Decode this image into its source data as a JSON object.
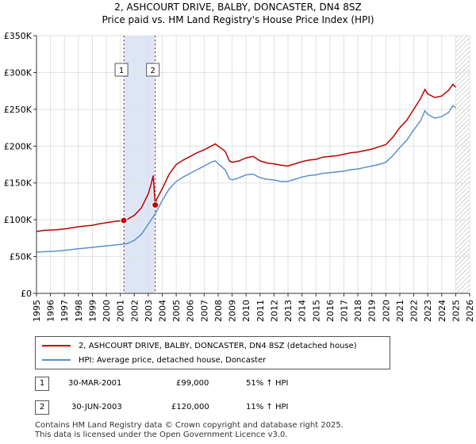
{
  "title": "2, ASHCOURT DRIVE, BALBY, DONCASTER, DN4 8SZ",
  "subtitle": "Price paid vs. HM Land Registry's House Price Index (HPI)",
  "colors": {
    "red": "#c00000",
    "blue": "#5b8fd0",
    "highlight": "#dce6f7",
    "grid": "#e0e0e0",
    "hatch": "#aaaaaa"
  },
  "chart_data": {
    "type": "line",
    "title": "2, ASHCOURT DRIVE, BALBY, DONCASTER, DN4 8SZ",
    "subtitle": "Price paid vs. HM Land Registry's House Price Index (HPI)",
    "xlim": [
      1995,
      2026
    ],
    "ylim": [
      0,
      350000
    ],
    "x_ticks": [
      "1995",
      "1996",
      "1997",
      "1998",
      "1999",
      "2000",
      "2001",
      "2002",
      "2003",
      "2004",
      "2005",
      "2006",
      "2007",
      "2008",
      "2009",
      "2010",
      "2011",
      "2012",
      "2013",
      "2014",
      "2015",
      "2016",
      "2017",
      "2018",
      "2019",
      "2020",
      "2021",
      "2022",
      "2023",
      "2024",
      "2025",
      "2026"
    ],
    "y_ticks": [
      {
        "value": 0,
        "label": "£0"
      },
      {
        "value": 50000,
        "label": "£50K"
      },
      {
        "value": 100000,
        "label": "£100K"
      },
      {
        "value": 150000,
        "label": "£150K"
      },
      {
        "value": 200000,
        "label": "£200K"
      },
      {
        "value": 250000,
        "label": "£250K"
      },
      {
        "value": 300000,
        "label": "£300K"
      },
      {
        "value": 350000,
        "label": "£350K"
      }
    ],
    "grid": true,
    "shaded_range": [
      2001.25,
      2003.5
    ],
    "hatched_from": 2025.0,
    "sale_markers": [
      {
        "label": "1",
        "x": 2001.25,
        "y": 99000
      },
      {
        "label": "2",
        "x": 2003.5,
        "y": 120000
      }
    ],
    "series": [
      {
        "name": "2, ASHCOURT DRIVE, BALBY, DONCASTER, DN4 8SZ (detached house)",
        "color": "#c00000",
        "points": [
          [
            1995.0,
            84000
          ],
          [
            1995.5,
            85500
          ],
          [
            1996.0,
            86000
          ],
          [
            1996.5,
            86500
          ],
          [
            1997.0,
            87500
          ],
          [
            1997.5,
            89000
          ],
          [
            1998.0,
            90500
          ],
          [
            1998.5,
            91500
          ],
          [
            1999.0,
            92500
          ],
          [
            1999.5,
            94500
          ],
          [
            2000.0,
            96000
          ],
          [
            2000.5,
            97500
          ],
          [
            2001.0,
            98500
          ],
          [
            2001.25,
            99000
          ],
          [
            2001.5,
            100500
          ],
          [
            2002.0,
            106000
          ],
          [
            2002.5,
            116000
          ],
          [
            2003.0,
            135000
          ],
          [
            2003.2,
            148000
          ],
          [
            2003.35,
            160000
          ],
          [
            2003.5,
            120000
          ],
          [
            2003.6,
            128000
          ],
          [
            2004.0,
            142000
          ],
          [
            2004.5,
            162000
          ],
          [
            2005.0,
            175000
          ],
          [
            2005.5,
            181000
          ],
          [
            2006.0,
            186000
          ],
          [
            2006.5,
            191000
          ],
          [
            2007.0,
            195000
          ],
          [
            2007.5,
            200000
          ],
          [
            2007.8,
            203000
          ],
          [
            2008.0,
            200000
          ],
          [
            2008.5,
            193000
          ],
          [
            2008.8,
            180000
          ],
          [
            2009.0,
            178000
          ],
          [
            2009.5,
            180000
          ],
          [
            2010.0,
            184000
          ],
          [
            2010.5,
            186000
          ],
          [
            2011.0,
            180000
          ],
          [
            2011.5,
            177000
          ],
          [
            2012.0,
            176000
          ],
          [
            2012.5,
            174000
          ],
          [
            2013.0,
            173000
          ],
          [
            2013.5,
            176000
          ],
          [
            2014.0,
            179000
          ],
          [
            2014.5,
            181000
          ],
          [
            2015.0,
            182000
          ],
          [
            2015.5,
            185000
          ],
          [
            2016.0,
            186000
          ],
          [
            2016.5,
            187000
          ],
          [
            2017.0,
            189000
          ],
          [
            2017.5,
            191000
          ],
          [
            2018.0,
            192000
          ],
          [
            2018.5,
            194000
          ],
          [
            2019.0,
            196000
          ],
          [
            2019.5,
            199000
          ],
          [
            2020.0,
            202000
          ],
          [
            2020.5,
            212000
          ],
          [
            2021.0,
            225000
          ],
          [
            2021.5,
            235000
          ],
          [
            2022.0,
            250000
          ],
          [
            2022.5,
            265000
          ],
          [
            2022.8,
            277000
          ],
          [
            2023.0,
            271000
          ],
          [
            2023.5,
            266000
          ],
          [
            2024.0,
            268000
          ],
          [
            2024.5,
            276000
          ],
          [
            2024.8,
            284000
          ],
          [
            2025.0,
            280000
          ]
        ]
      },
      {
        "name": "HPI: Average price, detached house, Doncaster",
        "color": "#5b8fd0",
        "points": [
          [
            1995.0,
            56000
          ],
          [
            1995.5,
            56500
          ],
          [
            1996.0,
            57000
          ],
          [
            1996.5,
            57500
          ],
          [
            1997.0,
            58500
          ],
          [
            1997.5,
            59500
          ],
          [
            1998.0,
            60500
          ],
          [
            1998.5,
            61500
          ],
          [
            1999.0,
            62500
          ],
          [
            1999.5,
            63500
          ],
          [
            2000.0,
            64500
          ],
          [
            2000.5,
            65500
          ],
          [
            2001.0,
            66500
          ],
          [
            2001.5,
            67500
          ],
          [
            2002.0,
            72000
          ],
          [
            2002.5,
            80000
          ],
          [
            2003.0,
            94000
          ],
          [
            2003.5,
            108000
          ],
          [
            2004.0,
            126000
          ],
          [
            2004.5,
            142000
          ],
          [
            2005.0,
            152000
          ],
          [
            2005.5,
            158000
          ],
          [
            2006.0,
            163000
          ],
          [
            2006.5,
            168000
          ],
          [
            2007.0,
            173000
          ],
          [
            2007.5,
            178000
          ],
          [
            2007.8,
            180000
          ],
          [
            2008.0,
            176000
          ],
          [
            2008.5,
            168000
          ],
          [
            2008.8,
            156000
          ],
          [
            2009.0,
            154000
          ],
          [
            2009.5,
            157000
          ],
          [
            2010.0,
            161000
          ],
          [
            2010.5,
            162000
          ],
          [
            2011.0,
            157000
          ],
          [
            2011.5,
            155000
          ],
          [
            2012.0,
            154000
          ],
          [
            2012.5,
            152000
          ],
          [
            2013.0,
            152000
          ],
          [
            2013.5,
            155000
          ],
          [
            2014.0,
            158000
          ],
          [
            2014.5,
            160000
          ],
          [
            2015.0,
            161000
          ],
          [
            2015.5,
            163000
          ],
          [
            2016.0,
            164000
          ],
          [
            2016.5,
            165000
          ],
          [
            2017.0,
            166000
          ],
          [
            2017.5,
            168000
          ],
          [
            2018.0,
            169000
          ],
          [
            2018.5,
            171000
          ],
          [
            2019.0,
            173000
          ],
          [
            2019.5,
            175000
          ],
          [
            2020.0,
            178000
          ],
          [
            2020.5,
            187000
          ],
          [
            2021.0,
            198000
          ],
          [
            2021.5,
            208000
          ],
          [
            2022.0,
            222000
          ],
          [
            2022.5,
            235000
          ],
          [
            2022.8,
            248000
          ],
          [
            2023.0,
            243000
          ],
          [
            2023.5,
            238000
          ],
          [
            2024.0,
            240000
          ],
          [
            2024.5,
            246000
          ],
          [
            2024.8,
            255000
          ],
          [
            2025.0,
            252000
          ]
        ]
      }
    ]
  },
  "legend": {
    "items": [
      {
        "label": "2, ASHCOURT DRIVE, BALBY, DONCASTER, DN4 8SZ (detached house)",
        "color": "#c00000"
      },
      {
        "label": "HPI: Average price, detached house, Doncaster",
        "color": "#5b8fd0"
      }
    ]
  },
  "transactions": [
    {
      "num": "1",
      "date": "30-MAR-2001",
      "price": "£99,000",
      "hpi": "51% ↑ HPI"
    },
    {
      "num": "2",
      "date": "30-JUN-2003",
      "price": "£120,000",
      "hpi": "11% ↑ HPI"
    }
  ],
  "footer": {
    "line1": "Contains HM Land Registry data © Crown copyright and database right 2025.",
    "line2": "This data is licensed under the Open Government Licence v3.0."
  }
}
